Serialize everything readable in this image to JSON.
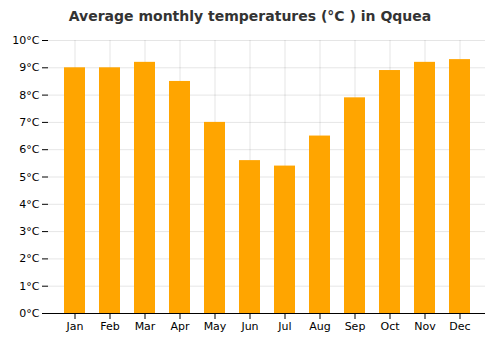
{
  "chart_data": {
    "type": "bar",
    "title": "Average monthly temperatures (°C ) in Qquea",
    "categories": [
      "Jan",
      "Feb",
      "Mar",
      "Apr",
      "May",
      "Jun",
      "Jul",
      "Aug",
      "Sep",
      "Oct",
      "Nov",
      "Dec"
    ],
    "values": [
      9.0,
      9.0,
      9.2,
      8.5,
      7.0,
      5.6,
      5.4,
      6.5,
      7.9,
      8.9,
      9.2,
      9.3
    ],
    "color": "#FFA500",
    "ylim": [
      0,
      10
    ],
    "yticks": [
      {
        "value": 0,
        "label": "0°C"
      },
      {
        "value": 1,
        "label": "1°C"
      },
      {
        "value": 2,
        "label": "2°C"
      },
      {
        "value": 3,
        "label": "3°C"
      },
      {
        "value": 4,
        "label": "4°C"
      },
      {
        "value": 5,
        "label": "5°C"
      },
      {
        "value": 6,
        "label": "6°C"
      },
      {
        "value": 7,
        "label": "7°C"
      },
      {
        "value": 8,
        "label": "8°C"
      },
      {
        "value": 9,
        "label": "9°C"
      },
      {
        "value": 10,
        "label": "10°C"
      }
    ],
    "grid": true
  }
}
